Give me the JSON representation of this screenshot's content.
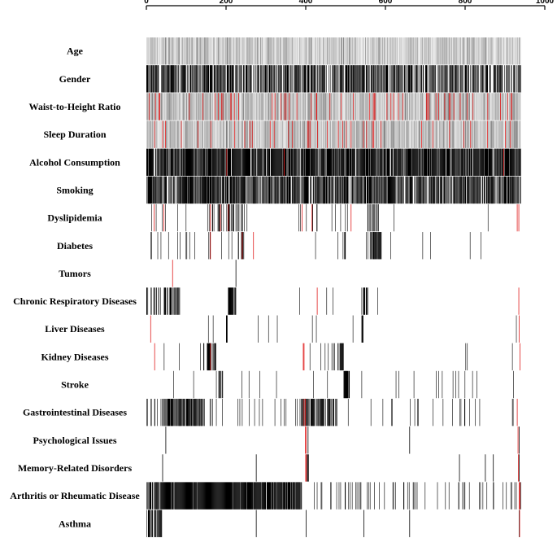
{
  "chart_data": {
    "type": "heatmap",
    "title": "",
    "subtitle": "",
    "xlabel": "",
    "ylabel": "",
    "xlim": [
      0,
      1000
    ],
    "n_observations": 940,
    "x_ticks": [
      0,
      200,
      400,
      600,
      800,
      1000
    ],
    "x_tick_labels": [
      "0",
      "200",
      "400",
      "600",
      "800",
      "1000"
    ],
    "legend": "none",
    "grid": false,
    "colors": {
      "present": "#000000",
      "highlight": "#e01a1a",
      "continuous_light": "#d4d4d4",
      "continuous_mid": "#9a9a9a"
    },
    "rows": [
      {
        "label": "Age",
        "kind": "continuous",
        "seed": 11,
        "dark_ratio": 0.2,
        "red_ratio": 0
      },
      {
        "label": "Gender",
        "kind": "binary",
        "seed": 12,
        "bands": [
          [
            0,
            940,
            0.58
          ]
        ],
        "red_ratio": 0
      },
      {
        "label": "Waist-to-Height Ratio",
        "kind": "continuous",
        "seed": 13,
        "dark_ratio": 0.45,
        "red_ratio": 0.05
      },
      {
        "label": "Sleep Duration",
        "kind": "continuous",
        "seed": 14,
        "dark_ratio": 0.35,
        "red_ratio": 0.03
      },
      {
        "label": "Alcohol Consumption",
        "kind": "binary",
        "seed": 15,
        "bands": [
          [
            0,
            940,
            0.82
          ]
        ],
        "red_ratio": 0.003
      },
      {
        "label": "Smoking",
        "kind": "binary",
        "seed": 16,
        "bands": [
          [
            0,
            940,
            0.7
          ]
        ],
        "red_ratio": 0
      },
      {
        "label": "Dyslipidemia",
        "kind": "binary",
        "seed": 17,
        "bands": [
          [
            0,
            100,
            0.07
          ],
          [
            150,
            260,
            0.25
          ],
          [
            380,
            510,
            0.08
          ],
          [
            555,
            585,
            0.55
          ],
          [
            585,
            940,
            0.015
          ]
        ],
        "red_marks": [
          19,
          43,
          160,
          185,
          205,
          390,
          415,
          513,
          930,
          934
        ]
      },
      {
        "label": "Diabetes",
        "kind": "binary",
        "seed": 18,
        "bands": [
          [
            0,
            230,
            0.08
          ],
          [
            230,
            245,
            0.4
          ],
          [
            400,
            580,
            0.09
          ],
          [
            560,
            590,
            0.85
          ],
          [
            590,
            940,
            0.02
          ]
        ],
        "red_marks": [
          160,
          240,
          268
        ]
      },
      {
        "label": "Tumors",
        "kind": "binary",
        "seed": 19,
        "marks": [
          224
        ],
        "red_marks": [
          65
        ]
      },
      {
        "label": "Chronic Respiratory Diseases",
        "kind": "binary",
        "seed": 20,
        "bands": [
          [
            0,
            85,
            0.45
          ],
          [
            205,
            225,
            0.9
          ],
          [
            300,
            560,
            0.04
          ],
          [
            540,
            560,
            0.6
          ],
          [
            560,
            660,
            0.04
          ]
        ],
        "red_marks": [
          428,
          934
        ]
      },
      {
        "label": "Liver Diseases",
        "kind": "binary",
        "seed": 21,
        "bands": [
          [
            120,
            420,
            0.015
          ],
          [
            420,
            940,
            0.006
          ]
        ],
        "marks": [
          200,
          201,
          202,
          540,
          541,
          542,
          543
        ],
        "red_marks": [
          10,
          935
        ]
      },
      {
        "label": "Kidney Diseases",
        "kind": "binary",
        "seed": 22,
        "bands": [
          [
            30,
            165,
            0.04
          ],
          [
            150,
            175,
            0.7
          ],
          [
            400,
            500,
            0.05
          ],
          [
            480,
            495,
            0.6
          ],
          [
            500,
            940,
            0.01
          ]
        ],
        "red_marks": [
          20,
          160,
          393,
          395,
          937
        ]
      },
      {
        "label": "Stroke",
        "kind": "binary",
        "seed": 23,
        "bands": [
          [
            0,
            380,
            0.02
          ],
          [
            180,
            192,
            0.5
          ],
          [
            400,
            940,
            0.015
          ],
          [
            495,
            510,
            0.9
          ]
        ],
        "red_marks": []
      },
      {
        "label": "Gastrointestinal Diseases",
        "kind": "binary",
        "seed": 24,
        "bands": [
          [
            0,
            50,
            0.3
          ],
          [
            50,
            145,
            0.75
          ],
          [
            145,
            400,
            0.09
          ],
          [
            390,
            480,
            0.55
          ],
          [
            480,
            940,
            0.035
          ]
        ],
        "red_marks": [
          395,
          398,
          930
        ]
      },
      {
        "label": "Psychological Issues",
        "kind": "binary",
        "seed": 25,
        "marks": [
          48,
          405,
          660,
          935
        ],
        "red_marks": [
          398,
          400,
          932
        ]
      },
      {
        "label": "Memory-Related Disorders",
        "kind": "binary",
        "seed": 26,
        "marks": [
          40,
          275,
          402,
          404,
          406,
          785,
          850,
          870,
          935
        ],
        "red_marks": [
          399,
          401,
          933
        ]
      },
      {
        "label": "Arthritis or Rheumatic Disease",
        "kind": "binary",
        "seed": 27,
        "bands": [
          [
            0,
            35,
            0.55
          ],
          [
            35,
            390,
            0.93
          ],
          [
            420,
            940,
            0.11
          ]
        ],
        "red_marks": [
          935,
          937
        ]
      },
      {
        "label": "Asthma",
        "kind": "binary",
        "seed": 28,
        "bands": [
          [
            0,
            40,
            0.6
          ]
        ],
        "marks": [
          275,
          400,
          545,
          660,
          935
        ],
        "red_marks": [
          936
        ]
      }
    ]
  }
}
